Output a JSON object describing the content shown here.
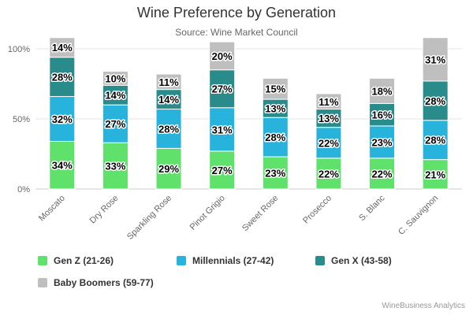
{
  "chart_data": {
    "type": "bar",
    "stacked": true,
    "title": "Wine Preference by Generation",
    "subtitle": "Source: Wine Market Council",
    "categories": [
      "Moscato",
      "Dry Rose",
      "Sparkling Rose",
      "Pinot Grigio",
      "Sweet Rose",
      "Prosecco",
      "S. Blanc",
      "C. Sauvignon"
    ],
    "series": [
      {
        "name": "Gen Z (21-26)",
        "color": "#5fe16c",
        "values": [
          34,
          33,
          29,
          27,
          23,
          22,
          22,
          21
        ]
      },
      {
        "name": "Millennials (27-42)",
        "color": "#27b3dc",
        "values": [
          32,
          27,
          28,
          31,
          28,
          22,
          23,
          28
        ]
      },
      {
        "name": "Gen X (43-58)",
        "color": "#2a8b8b",
        "values": [
          28,
          14,
          14,
          27,
          13,
          13,
          16,
          28
        ]
      },
      {
        "name": "Baby Boomers (59-77)",
        "color": "#bfbfbf",
        "values": [
          14,
          10,
          11,
          20,
          15,
          11,
          18,
          31
        ]
      }
    ],
    "ylim": [
      0,
      100
    ],
    "yticks": [
      "0%",
      "50%",
      "100%"
    ],
    "value_suffix": "%",
    "grid": true,
    "legend": "bottom"
  },
  "credits": "WineBusiness Analytics"
}
